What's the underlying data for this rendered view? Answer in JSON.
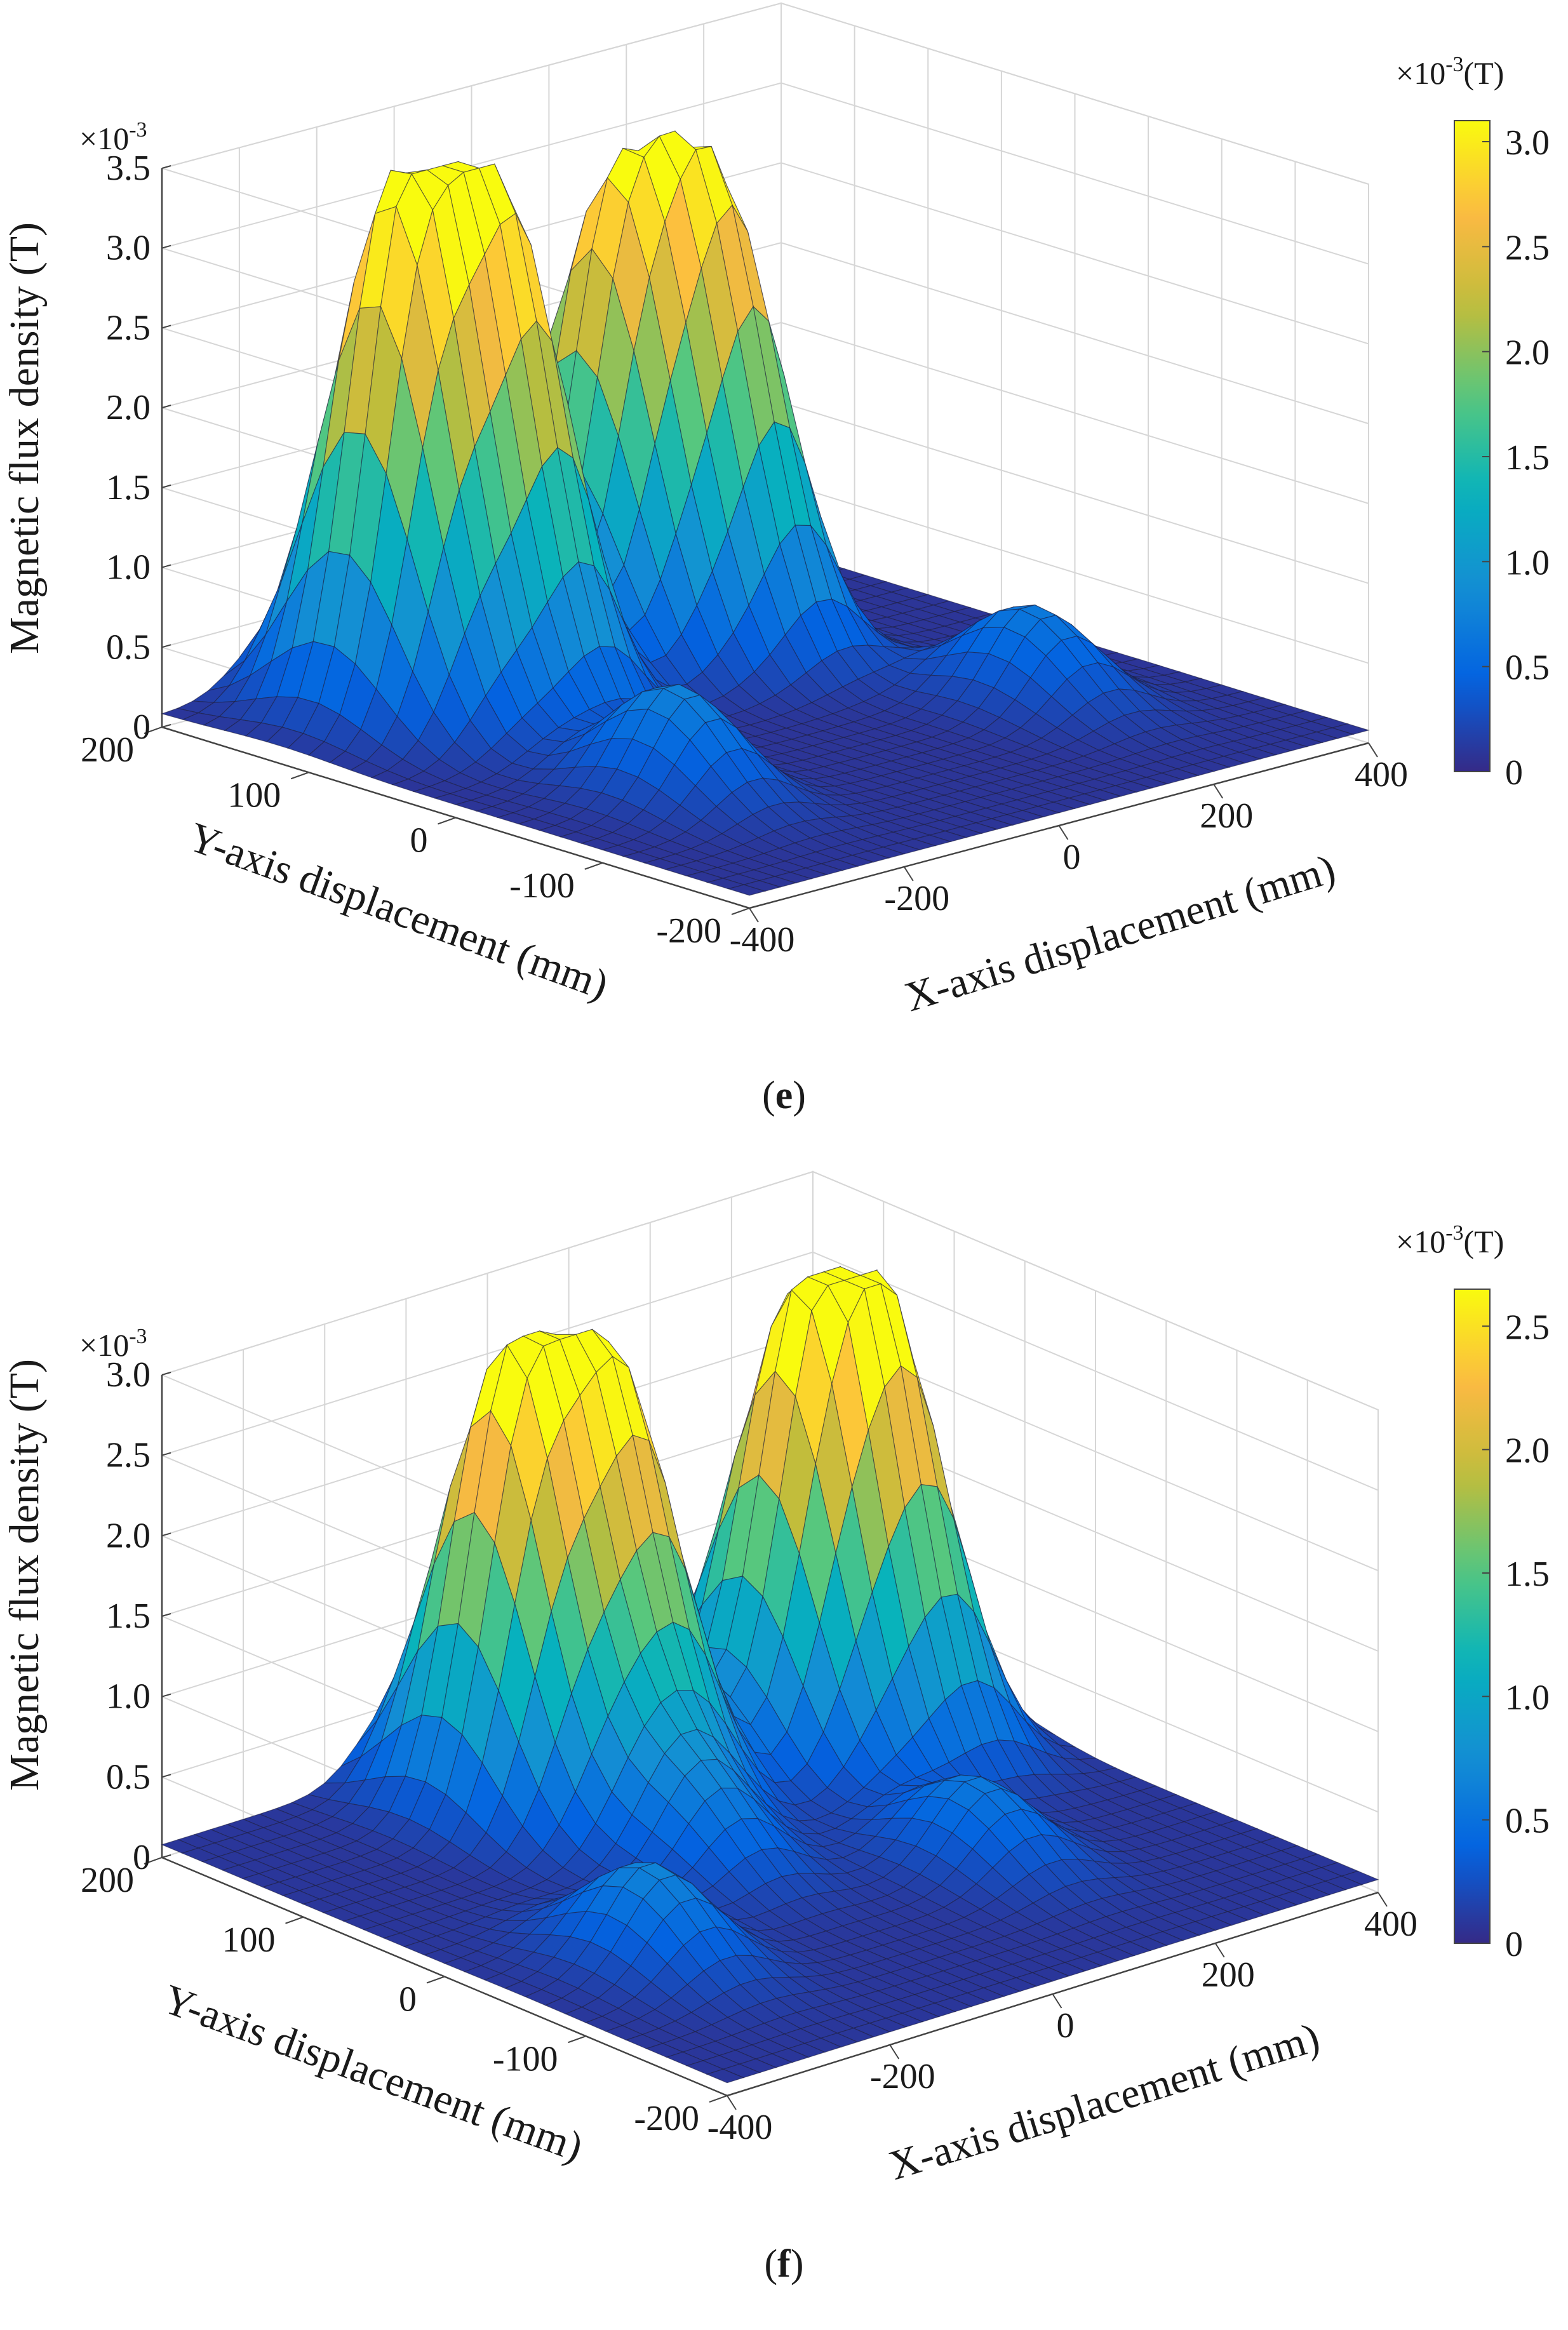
{
  "chart_data": [
    {
      "type": "surface3d",
      "panel_label": "e",
      "zlabel": "Magnetic flux density (T)",
      "z_exponent_label": "×10",
      "z_exponent_sup": "-3",
      "xlabel": "X-axis displacement (mm)",
      "ylabel": "Y-axis displacement (mm)",
      "xlim": [
        -400,
        400
      ],
      "ylim": [
        -200,
        200
      ],
      "zlim": [
        0,
        3.5
      ],
      "x_ticks": [
        "-400",
        "-200",
        "0",
        "200",
        "400"
      ],
      "y_ticks": [
        "-200",
        "-100",
        "0",
        "100",
        "200"
      ],
      "z_ticks": [
        "0",
        "0.5",
        "1.0",
        "1.5",
        "2.0",
        "2.5",
        "3.0",
        "3.5"
      ],
      "grid": true,
      "colorbar": {
        "unit_prefix": "×10",
        "unit_sup": "-3",
        "unit_suffix": "(T)",
        "ticks": [
          "0",
          "0.5",
          "1.0",
          "1.5",
          "2.0",
          "2.5",
          "3.0"
        ],
        "range": [
          0,
          3.1
        ]
      },
      "peaks": [
        {
          "x": -250,
          "y": 120,
          "z": 3.1
        },
        {
          "x": -150,
          "y": 100,
          "z": 3.0
        },
        {
          "x": 40,
          "y": 130,
          "z": 2.6
        },
        {
          "x": 130,
          "y": 100,
          "z": 2.7
        },
        {
          "x": -230,
          "y": -60,
          "z": 0.7
        },
        {
          "x": 230,
          "y": -60,
          "z": 0.6
        }
      ]
    },
    {
      "type": "surface3d",
      "panel_label": "f",
      "zlabel": "Magnetic flux density (T)",
      "z_exponent_label": "×10",
      "z_exponent_sup": "-3",
      "xlabel": "X-axis displacement (mm)",
      "ylabel": "Y-axis displacement (mm)",
      "xlim": [
        -400,
        400
      ],
      "ylim": [
        -200,
        200
      ],
      "zlim": [
        0,
        3.0
      ],
      "x_ticks": [
        "-400",
        "-200",
        "0",
        "200",
        "400"
      ],
      "y_ticks": [
        "-200",
        "-100",
        "0",
        "100",
        "200"
      ],
      "z_ticks": [
        "0",
        "0.5",
        "1.0",
        "1.5",
        "2.0",
        "2.5",
        "3.0"
      ],
      "grid": true,
      "colorbar": {
        "unit_prefix": "×10",
        "unit_sup": "-3",
        "unit_suffix": "(T)",
        "ticks": [
          "0",
          "0.5",
          "1.0",
          "1.5",
          "2.0",
          "2.5"
        ],
        "range": [
          0,
          2.65
        ]
      },
      "peaks": [
        {
          "x": -100,
          "y": 130,
          "z": 2.6
        },
        {
          "x": 0,
          "y": 110,
          "z": 2.5
        },
        {
          "x": 200,
          "y": 100,
          "z": 2.3
        },
        {
          "x": 280,
          "y": 80,
          "z": 2.4
        },
        {
          "x": -250,
          "y": -60,
          "z": 0.6
        },
        {
          "x": -60,
          "y": 20,
          "z": 0.6
        },
        {
          "x": 150,
          "y": -60,
          "z": 0.5
        }
      ]
    }
  ]
}
